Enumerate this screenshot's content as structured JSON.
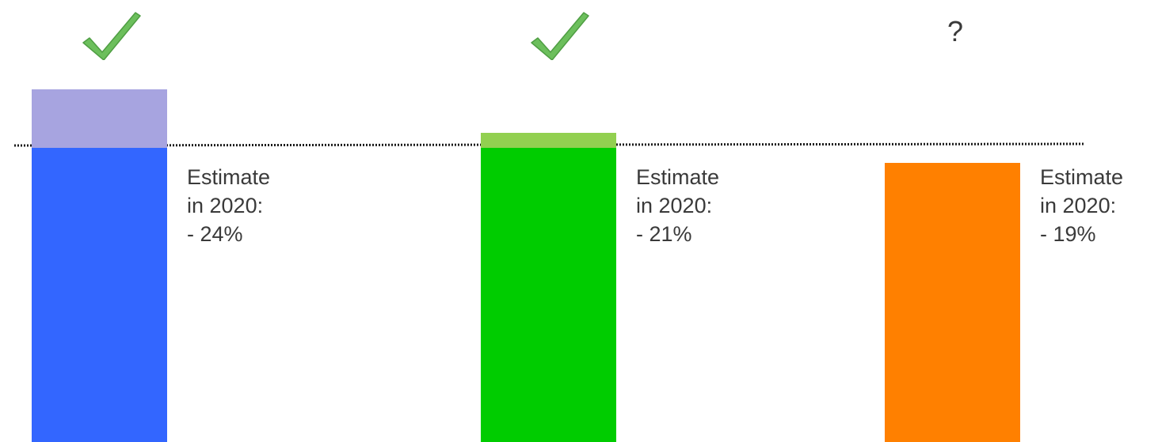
{
  "chart_data": {
    "type": "bar",
    "categories": [
      "",
      "",
      ""
    ],
    "series": [
      {
        "values": [
          24,
          21,
          19
        ]
      },
      {
        "values": [
          20,
          20,
          20
        ]
      }
    ],
    "estimate_labels": [
      {
        "line1": "Estimate",
        "line2": "in 2020:",
        "line3": "- 24%"
      },
      {
        "line1": "Estimate",
        "line2": "in 2020:",
        "line3": "- 21%"
      },
      {
        "line1": "Estimate",
        "line2": "in 2020:",
        "line3": "- 19%"
      }
    ],
    "status_markers": [
      "check-icon",
      "check-icon",
      "?"
    ],
    "colors": {
      "bar_main": [
        "#3366ff",
        "#00cc00",
        "#ff8000"
      ],
      "bar_excess": [
        "#a7a4e0",
        "#92d050",
        "#ff8000"
      ],
      "check": "#6cbf5c",
      "target_line": "#1a1a1a"
    },
    "ylim": [
      0,
      27
    ],
    "grid": false
  }
}
